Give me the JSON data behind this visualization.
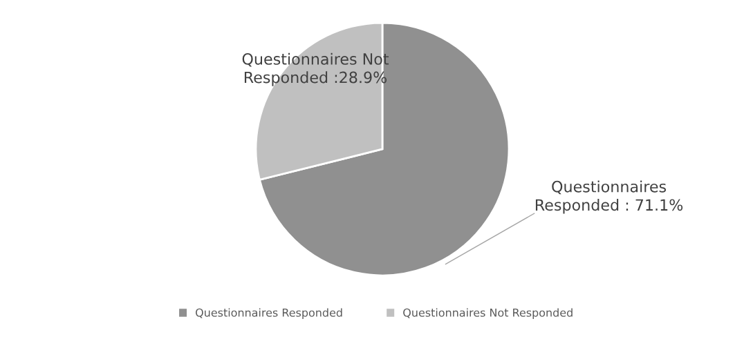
{
  "chart_data": {
    "type": "pie",
    "categories": [
      "Questionnaires Responded",
      "Questionnaires Not Responded"
    ],
    "values": [
      71.1,
      28.9
    ],
    "colors": [
      "#909090",
      "#c0c0c0"
    ],
    "value_labels": [
      "Questionnaires\nResponded : 71.1%",
      "Questionnaires Not\nResponded :28.9%"
    ],
    "legend": "bottom"
  }
}
